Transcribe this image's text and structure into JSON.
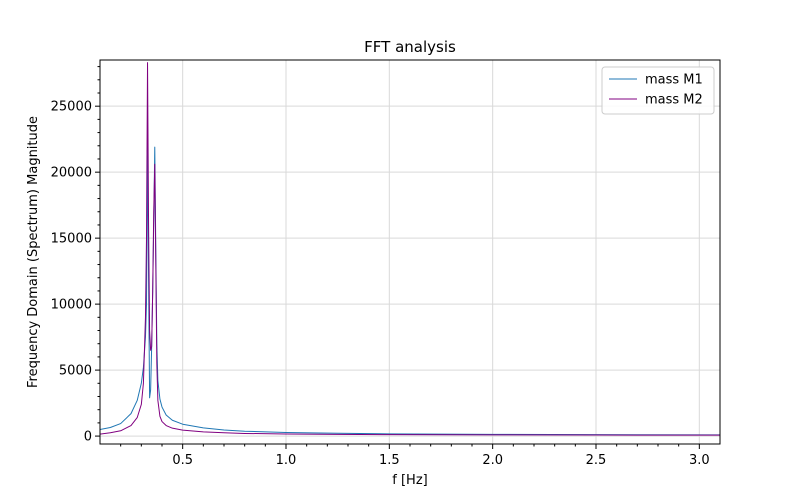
{
  "chart_data": {
    "type": "line",
    "title": "FFT analysis",
    "xlabel": "f [Hz]",
    "ylabel": "Frequency Domain (Spectrum) Magnitude",
    "xlim": [
      0.1,
      3.1
    ],
    "ylim": [
      -600,
      28500
    ],
    "xticks": [
      0.5,
      1.0,
      1.5,
      2.0,
      2.5,
      3.0
    ],
    "xtick_labels": [
      "0.5",
      "1.0",
      "1.5",
      "2.0",
      "2.5",
      "3.0"
    ],
    "yticks": [
      0,
      5000,
      10000,
      15000,
      20000,
      25000
    ],
    "ytick_labels": [
      "0",
      "5000",
      "10000",
      "15000",
      "20000",
      "25000"
    ],
    "grid": true,
    "legend_position": "top-right",
    "series": [
      {
        "name": "mass M1",
        "color": "#1f77b4",
        "x": [
          0.1,
          0.15,
          0.2,
          0.25,
          0.28,
          0.3,
          0.31,
          0.32,
          0.325,
          0.33,
          0.335,
          0.34,
          0.345,
          0.35,
          0.355,
          0.36,
          0.365,
          0.37,
          0.375,
          0.38,
          0.39,
          0.4,
          0.42,
          0.45,
          0.5,
          0.6,
          0.7,
          0.8,
          1.0,
          1.25,
          1.5,
          2.0,
          2.5,
          3.1
        ],
        "y": [
          500,
          650,
          950,
          1700,
          2700,
          4000,
          5200,
          7500,
          10000,
          22000,
          12000,
          2900,
          3500,
          6800,
          11000,
          16000,
          21900,
          14000,
          7000,
          4200,
          2800,
          2200,
          1600,
          1200,
          900,
          620,
          460,
          370,
          270,
          210,
          170,
          130,
          110,
          90
        ]
      },
      {
        "name": "mass M2",
        "color": "#800080",
        "x": [
          0.1,
          0.15,
          0.2,
          0.25,
          0.28,
          0.3,
          0.31,
          0.32,
          0.325,
          0.33,
          0.335,
          0.34,
          0.345,
          0.35,
          0.355,
          0.36,
          0.365,
          0.37,
          0.375,
          0.38,
          0.39,
          0.4,
          0.42,
          0.45,
          0.5,
          0.6,
          0.7,
          0.8,
          1.0,
          1.25,
          1.5,
          2.0,
          2.5,
          3.1
        ],
        "y": [
          150,
          250,
          400,
          800,
          1400,
          2400,
          4000,
          9000,
          15000,
          28300,
          16000,
          8000,
          6500,
          6800,
          11000,
          17000,
          20600,
          13000,
          5500,
          2700,
          1500,
          1100,
          800,
          600,
          450,
          320,
          250,
          200,
          160,
          130,
          110,
          90,
          80,
          70
        ]
      }
    ]
  }
}
